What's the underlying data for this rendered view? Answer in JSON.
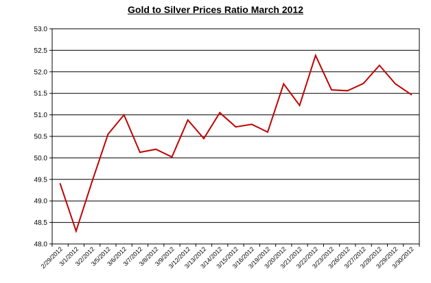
{
  "chart_data": {
    "type": "line",
    "title": "Gold to Silver Prices Ratio  March 2012",
    "xlabel": "",
    "ylabel": "",
    "ylim": [
      48.0,
      53.0
    ],
    "yticks": [
      "48.0",
      "48.5",
      "49.0",
      "49.5",
      "50.0",
      "50.5",
      "51.0",
      "51.5",
      "52.0",
      "52.5",
      "53.0"
    ],
    "grid": "horizontal",
    "legend": "none",
    "line_color": "#c00000",
    "categories": [
      "2/29/2012",
      "3/1/2012",
      "3/2/2012",
      "3/5/2012",
      "3/6/2012",
      "3/7/2012",
      "3/8/2012",
      "3/9/2012",
      "3/12/2012",
      "3/13/2012",
      "3/14/2012",
      "3/15/2012",
      "3/16/2012",
      "3/19/2012",
      "3/20/2012",
      "3/21/2012",
      "3/22/2012",
      "3/23/2012",
      "3/26/2012",
      "3/27/2012",
      "3/28/2012",
      "3/29/2012",
      "3/30/2012"
    ],
    "series": [
      {
        "values": [
          49.4,
          48.3,
          49.45,
          50.55,
          51.0,
          50.13,
          50.2,
          50.02,
          50.88,
          50.45,
          51.05,
          50.72,
          50.78,
          50.6,
          51.72,
          51.22,
          52.38,
          51.58,
          51.56,
          51.73,
          52.15,
          51.72,
          51.47
        ]
      }
    ]
  }
}
